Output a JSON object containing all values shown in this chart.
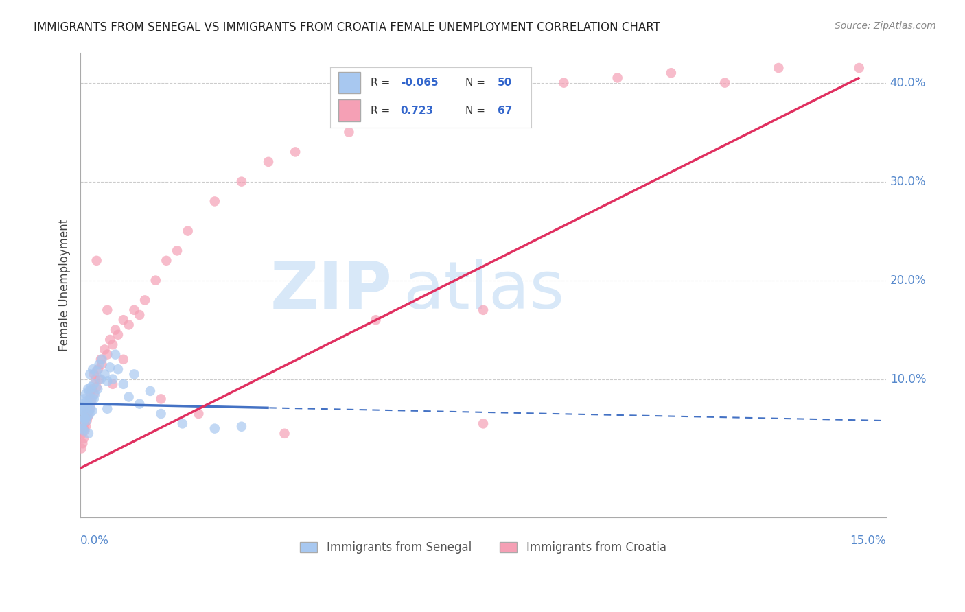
{
  "title": "IMMIGRANTS FROM SENEGAL VS IMMIGRANTS FROM CROATIA FEMALE UNEMPLOYMENT CORRELATION CHART",
  "source": "Source: ZipAtlas.com",
  "xlim": [
    0.0,
    15.0
  ],
  "ylim": [
    -4.0,
    43.0
  ],
  "ylabel_ticks": [
    10.0,
    20.0,
    30.0,
    40.0
  ],
  "senegal_R": -0.065,
  "senegal_N": 50,
  "croatia_R": 0.723,
  "croatia_N": 67,
  "senegal_color": "#a8c8f0",
  "croatia_color": "#f5a0b5",
  "senegal_line_color": "#4472c4",
  "croatia_line_color": "#e03060",
  "bg_color": "#ffffff",
  "grid_color": "#cccccc",
  "right_label_color": "#5588cc",
  "watermark_color": "#d8e8f8",
  "senegal_line_x0": 0.0,
  "senegal_line_y0": 7.5,
  "senegal_line_x1": 15.0,
  "senegal_line_y1": 5.8,
  "senegal_solid_x_max": 3.5,
  "croatia_line_x0": 0.0,
  "croatia_line_y0": 1.0,
  "croatia_line_x1": 14.5,
  "croatia_line_y1": 40.5,
  "croatia_solid_x_max": 14.5,
  "senegal_scatter_x": [
    0.02,
    0.03,
    0.04,
    0.05,
    0.06,
    0.07,
    0.08,
    0.09,
    0.1,
    0.11,
    0.12,
    0.13,
    0.14,
    0.15,
    0.16,
    0.17,
    0.18,
    0.19,
    0.2,
    0.21,
    0.22,
    0.23,
    0.25,
    0.27,
    0.3,
    0.32,
    0.35,
    0.38,
    0.4,
    0.45,
    0.5,
    0.55,
    0.6,
    0.65,
    0.7,
    0.8,
    0.9,
    1.0,
    1.1,
    1.3,
    1.5,
    1.9,
    2.5,
    3.0,
    0.04,
    0.06,
    0.08,
    0.15,
    0.25,
    0.5
  ],
  "senegal_scatter_y": [
    6.5,
    7.0,
    5.5,
    6.8,
    7.5,
    8.0,
    6.0,
    7.2,
    8.5,
    5.8,
    7.8,
    6.2,
    9.0,
    7.5,
    8.8,
    6.5,
    10.5,
    7.0,
    9.2,
    8.0,
    6.8,
    11.0,
    9.5,
    8.5,
    10.8,
    9.0,
    11.5,
    10.0,
    12.0,
    10.5,
    9.8,
    11.2,
    10.0,
    12.5,
    11.0,
    9.5,
    8.2,
    10.5,
    7.5,
    8.8,
    6.5,
    5.5,
    5.0,
    5.2,
    5.0,
    4.8,
    6.0,
    4.5,
    8.0,
    7.0
  ],
  "croatia_scatter_x": [
    0.02,
    0.03,
    0.04,
    0.05,
    0.06,
    0.07,
    0.08,
    0.09,
    0.1,
    0.11,
    0.12,
    0.13,
    0.14,
    0.15,
    0.16,
    0.17,
    0.18,
    0.19,
    0.2,
    0.22,
    0.25,
    0.28,
    0.3,
    0.33,
    0.35,
    0.38,
    0.4,
    0.45,
    0.5,
    0.55,
    0.6,
    0.65,
    0.7,
    0.8,
    0.9,
    1.0,
    1.1,
    1.2,
    1.4,
    1.6,
    1.8,
    2.0,
    2.5,
    3.0,
    3.5,
    4.0,
    5.0,
    6.0,
    7.0,
    8.0,
    9.0,
    10.0,
    11.0,
    12.0,
    13.0,
    14.5,
    0.3,
    0.5,
    5.5,
    7.5,
    0.25,
    0.6,
    0.8,
    1.5,
    2.2,
    3.8,
    7.5
  ],
  "croatia_scatter_y": [
    3.0,
    4.5,
    3.5,
    5.0,
    4.0,
    5.5,
    4.8,
    6.0,
    5.2,
    6.5,
    5.8,
    7.0,
    6.2,
    7.5,
    6.8,
    8.0,
    7.2,
    8.5,
    7.8,
    9.0,
    8.5,
    10.0,
    9.2,
    11.0,
    10.0,
    12.0,
    11.5,
    13.0,
    12.5,
    14.0,
    13.5,
    15.0,
    14.5,
    16.0,
    15.5,
    17.0,
    16.5,
    18.0,
    20.0,
    22.0,
    23.0,
    25.0,
    28.0,
    30.0,
    32.0,
    33.0,
    35.0,
    37.0,
    38.0,
    39.0,
    40.0,
    40.5,
    41.0,
    40.0,
    41.5,
    41.5,
    22.0,
    17.0,
    16.0,
    5.5,
    10.5,
    9.5,
    12.0,
    8.0,
    6.5,
    4.5,
    17.0
  ]
}
